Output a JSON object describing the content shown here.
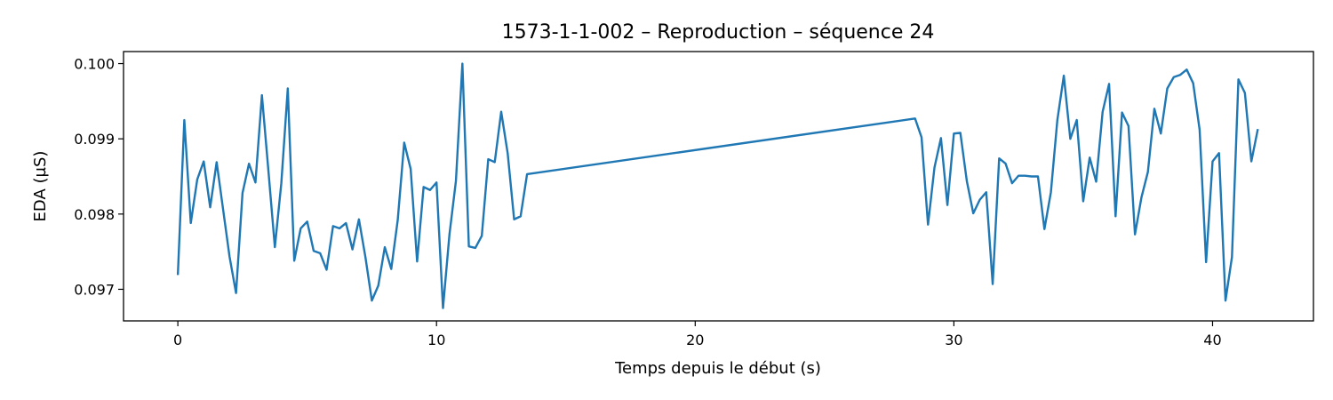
{
  "chart_data": {
    "type": "line",
    "title": "1573-1-1-002 – Reproduction – séquence 24",
    "xlabel": "Temps depuis le début (s)",
    "ylabel": "EDA (µS)",
    "xlim": [
      -2.1,
      43.9
    ],
    "ylim": [
      0.09658,
      0.10016
    ],
    "x_ticks": [
      0,
      10,
      20,
      30,
      40
    ],
    "x_tick_labels": [
      "0",
      "10",
      "20",
      "30",
      "40"
    ],
    "y_ticks": [
      0.097,
      0.098,
      0.099,
      0.1
    ],
    "y_tick_labels": [
      "0.097",
      "0.098",
      "0.099",
      "0.100"
    ],
    "grid": false,
    "line_color": "#1f77b4",
    "series": [
      {
        "x": [
          0.0,
          0.25,
          0.5,
          0.75,
          1.0,
          1.25,
          1.5,
          1.75,
          2.0,
          2.25,
          2.5,
          2.75,
          3.0,
          3.25,
          3.5,
          3.75,
          4.0,
          4.25,
          4.5,
          4.75,
          5.0,
          5.25,
          5.5,
          5.75,
          6.0,
          6.25,
          6.5,
          6.75,
          7.0,
          7.25,
          7.5,
          7.75,
          8.0,
          8.25,
          8.5,
          8.75,
          9.0,
          9.25,
          9.5,
          9.75,
          10.0,
          10.25,
          10.5,
          10.75,
          11.0,
          11.25,
          11.5,
          11.75,
          12.0,
          12.25,
          12.5,
          12.75,
          13.0,
          13.25,
          13.5,
          28.5,
          28.75,
          29.0,
          29.25,
          29.5,
          29.75,
          30.0,
          30.25,
          30.5,
          30.75,
          31.0,
          31.25,
          31.5,
          31.75,
          32.0,
          32.25,
          32.5,
          32.75,
          33.0,
          33.25,
          33.5,
          33.75,
          34.0,
          34.25,
          34.5,
          34.75,
          35.0,
          35.25,
          35.5,
          35.75,
          36.0,
          36.25,
          36.5,
          36.75,
          37.0,
          37.25,
          37.5,
          37.75,
          38.0,
          38.25,
          38.5,
          38.75,
          39.0,
          39.25,
          39.5,
          39.75,
          40.0,
          40.25,
          40.5,
          40.75,
          41.0,
          41.25,
          41.5,
          41.75
        ],
        "y": [
          0.09719,
          0.09925,
          0.09788,
          0.09846,
          0.0987,
          0.09809,
          0.09869,
          0.09806,
          0.09743,
          0.09695,
          0.09828,
          0.09867,
          0.09842,
          0.09958,
          0.09858,
          0.09756,
          0.09841,
          0.09967,
          0.09738,
          0.09781,
          0.0979,
          0.09751,
          0.09748,
          0.09726,
          0.09784,
          0.09781,
          0.09788,
          0.09753,
          0.09793,
          0.09743,
          0.09685,
          0.09705,
          0.09756,
          0.09727,
          0.09792,
          0.09895,
          0.0986,
          0.09737,
          0.09836,
          0.09832,
          0.09842,
          0.09675,
          0.09773,
          0.09844,
          0.1,
          0.09757,
          0.09755,
          0.09771,
          0.09873,
          0.09869,
          0.09936,
          0.09881,
          0.09793,
          0.09797,
          0.09853,
          0.09927,
          0.09902,
          0.09786,
          0.09862,
          0.09901,
          0.09812,
          0.09907,
          0.09908,
          0.09844,
          0.09801,
          0.09819,
          0.09829,
          0.09707,
          0.09874,
          0.09867,
          0.09841,
          0.09851,
          0.09851,
          0.0985,
          0.0985,
          0.0978,
          0.09829,
          0.09925,
          0.09984,
          0.099,
          0.09925,
          0.09817,
          0.09875,
          0.09843,
          0.09936,
          0.09973,
          0.09797,
          0.09935,
          0.09917,
          0.09773,
          0.09822,
          0.09856,
          0.0994,
          0.09907,
          0.09967,
          0.09982,
          0.09985,
          0.09992,
          0.09974,
          0.09912,
          0.09736,
          0.0987,
          0.09881,
          0.09685,
          0.09743,
          0.09979,
          0.09961,
          0.0987,
          0.09913
        ]
      }
    ]
  }
}
